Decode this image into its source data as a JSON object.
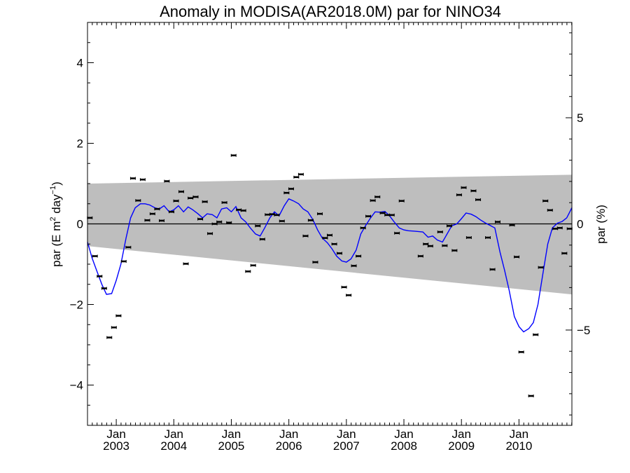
{
  "chart_data": {
    "type": "scatter",
    "title": "Anomaly in MODISA(AR2018.0M) par for NINO34",
    "ylabel": "par (E m² day⁻¹)",
    "ylabel_parts": {
      "base": "par (E m",
      "sup1": "2",
      "mid": " day",
      "sup2": "−1",
      "end": ")"
    },
    "y2label": "par (%)",
    "xlim": [
      2002.5,
      2010.92
    ],
    "ylim": [
      -5,
      5
    ],
    "y2lim": [
      -9.49,
      9.49
    ],
    "yticks": [
      -4,
      -2,
      0,
      2,
      4
    ],
    "yticklabels": [
      "−4",
      "−2",
      "0",
      "2",
      "4"
    ],
    "y2ticks": [
      -5,
      0,
      5
    ],
    "y2ticklabels": [
      "−5",
      "0",
      "5"
    ],
    "xticks": [
      {
        "x": 2003.0,
        "month": "Jan",
        "year": "2003"
      },
      {
        "x": 2004.0,
        "month": "Jan",
        "year": "2004"
      },
      {
        "x": 2005.0,
        "month": "Jan",
        "year": "2005"
      },
      {
        "x": 2006.0,
        "month": "Jan",
        "year": "2006"
      },
      {
        "x": 2007.0,
        "month": "Jan",
        "year": "2007"
      },
      {
        "x": 2008.0,
        "month": "Jan",
        "year": "2008"
      },
      {
        "x": 2009.0,
        "month": "Jan",
        "year": "2009"
      },
      {
        "x": 2010.0,
        "month": "Jan",
        "year": "2010"
      }
    ],
    "band": {
      "upper": [
        [
          2002.5,
          1.0
        ],
        [
          2010.92,
          1.22
        ]
      ],
      "lower": [
        [
          2002.5,
          -0.55
        ],
        [
          2010.92,
          -1.75
        ]
      ],
      "color": "#bebebe"
    },
    "zero_line": true,
    "points": [
      [
        2002.54,
        0.15
      ],
      [
        2002.63,
        -0.8
      ],
      [
        2002.71,
        -1.3
      ],
      [
        2002.79,
        -1.6
      ],
      [
        2002.88,
        -2.82
      ],
      [
        2002.96,
        -2.57
      ],
      [
        2003.04,
        -2.28
      ],
      [
        2003.13,
        -0.93
      ],
      [
        2003.21,
        -0.58
      ],
      [
        2003.29,
        1.13
      ],
      [
        2003.38,
        0.58
      ],
      [
        2003.46,
        1.1
      ],
      [
        2003.54,
        0.09
      ],
      [
        2003.63,
        0.25
      ],
      [
        2003.71,
        0.37
      ],
      [
        2003.79,
        0.08
      ],
      [
        2003.88,
        1.06
      ],
      [
        2003.96,
        0.3
      ],
      [
        2004.04,
        0.57
      ],
      [
        2004.13,
        0.8
      ],
      [
        2004.21,
        -0.99
      ],
      [
        2004.29,
        0.64
      ],
      [
        2004.38,
        0.67
      ],
      [
        2004.46,
        0.12
      ],
      [
        2004.54,
        0.55
      ],
      [
        2004.63,
        -0.24
      ],
      [
        2004.71,
        0.0
      ],
      [
        2004.79,
        0.05
      ],
      [
        2004.88,
        0.53
      ],
      [
        2004.96,
        0.03
      ],
      [
        2005.04,
        1.7
      ],
      [
        2005.13,
        0.35
      ],
      [
        2005.21,
        0.33
      ],
      [
        2005.29,
        -1.18
      ],
      [
        2005.38,
        -1.03
      ],
      [
        2005.46,
        -0.05
      ],
      [
        2005.54,
        -0.38
      ],
      [
        2005.63,
        0.23
      ],
      [
        2005.71,
        0.24
      ],
      [
        2005.79,
        0.22
      ],
      [
        2005.88,
        0.07
      ],
      [
        2005.96,
        0.77
      ],
      [
        2006.04,
        0.87
      ],
      [
        2006.13,
        1.16
      ],
      [
        2006.21,
        1.23
      ],
      [
        2006.29,
        -0.3
      ],
      [
        2006.38,
        0.09
      ],
      [
        2006.46,
        -0.95
      ],
      [
        2006.54,
        0.25
      ],
      [
        2006.63,
        -0.35
      ],
      [
        2006.71,
        -0.28
      ],
      [
        2006.79,
        -0.5
      ],
      [
        2006.88,
        -0.73
      ],
      [
        2006.96,
        -1.57
      ],
      [
        2007.04,
        -1.77
      ],
      [
        2007.13,
        -1.04
      ],
      [
        2007.21,
        -0.8
      ],
      [
        2007.29,
        -0.1
      ],
      [
        2007.38,
        0.19
      ],
      [
        2007.46,
        0.58
      ],
      [
        2007.54,
        0.67
      ],
      [
        2007.63,
        0.27
      ],
      [
        2007.71,
        0.22
      ],
      [
        2007.79,
        0.22
      ],
      [
        2007.88,
        -0.23
      ],
      [
        2007.96,
        0.57
      ],
      [
        2008.29,
        -0.8
      ],
      [
        2008.38,
        -0.5
      ],
      [
        2008.46,
        -0.55
      ],
      [
        2008.63,
        -0.2
      ],
      [
        2008.71,
        -0.54
      ],
      [
        2008.79,
        -0.05
      ],
      [
        2008.88,
        -0.66
      ],
      [
        2008.96,
        0.72
      ],
      [
        2009.04,
        0.9
      ],
      [
        2009.13,
        -0.34
      ],
      [
        2009.21,
        0.82
      ],
      [
        2009.29,
        0.6
      ],
      [
        2009.46,
        -0.34
      ],
      [
        2009.54,
        -1.13
      ],
      [
        2009.63,
        0.05
      ],
      [
        2009.88,
        -0.03
      ],
      [
        2009.96,
        -0.82
      ],
      [
        2010.04,
        -3.18
      ],
      [
        2010.21,
        -4.27
      ],
      [
        2010.29,
        -2.75
      ],
      [
        2010.38,
        -1.08
      ],
      [
        2010.46,
        0.57
      ],
      [
        2010.54,
        0.34
      ],
      [
        2010.63,
        -0.12
      ],
      [
        2010.71,
        -0.1
      ],
      [
        2010.79,
        -0.73
      ],
      [
        2010.88,
        -0.12
      ]
    ],
    "line": {
      "color": "#0000ff",
      "points": [
        [
          2002.5,
          -0.45
        ],
        [
          2002.58,
          -0.85
        ],
        [
          2002.67,
          -1.2
        ],
        [
          2002.75,
          -1.5
        ],
        [
          2002.83,
          -1.75
        ],
        [
          2002.92,
          -1.73
        ],
        [
          2003.0,
          -1.4
        ],
        [
          2003.08,
          -1.0
        ],
        [
          2003.17,
          -0.35
        ],
        [
          2003.25,
          0.15
        ],
        [
          2003.33,
          0.4
        ],
        [
          2003.42,
          0.5
        ],
        [
          2003.5,
          0.5
        ],
        [
          2003.58,
          0.47
        ],
        [
          2003.67,
          0.4
        ],
        [
          2003.75,
          0.37
        ],
        [
          2003.83,
          0.45
        ],
        [
          2003.92,
          0.3
        ],
        [
          2004.0,
          0.35
        ],
        [
          2004.08,
          0.45
        ],
        [
          2004.17,
          0.3
        ],
        [
          2004.25,
          0.42
        ],
        [
          2004.33,
          0.35
        ],
        [
          2004.42,
          0.25
        ],
        [
          2004.5,
          0.15
        ],
        [
          2004.58,
          0.25
        ],
        [
          2004.67,
          0.23
        ],
        [
          2004.75,
          0.15
        ],
        [
          2004.83,
          0.37
        ],
        [
          2004.92,
          0.4
        ],
        [
          2005.0,
          0.3
        ],
        [
          2005.08,
          0.43
        ],
        [
          2005.17,
          0.15
        ],
        [
          2005.25,
          0.05
        ],
        [
          2005.33,
          -0.1
        ],
        [
          2005.42,
          -0.25
        ],
        [
          2005.5,
          -0.3
        ],
        [
          2005.58,
          -0.1
        ],
        [
          2005.67,
          0.15
        ],
        [
          2005.75,
          0.3
        ],
        [
          2005.83,
          0.2
        ],
        [
          2005.92,
          0.45
        ],
        [
          2006.0,
          0.62
        ],
        [
          2006.08,
          0.57
        ],
        [
          2006.17,
          0.5
        ],
        [
          2006.25,
          0.37
        ],
        [
          2006.33,
          0.3
        ],
        [
          2006.42,
          0.1
        ],
        [
          2006.5,
          -0.15
        ],
        [
          2006.58,
          -0.35
        ],
        [
          2006.67,
          -0.47
        ],
        [
          2006.75,
          -0.62
        ],
        [
          2006.83,
          -0.8
        ],
        [
          2006.92,
          -0.92
        ],
        [
          2007.0,
          -0.95
        ],
        [
          2007.08,
          -0.87
        ],
        [
          2007.17,
          -0.65
        ],
        [
          2007.25,
          -0.25
        ],
        [
          2007.33,
          -0.05
        ],
        [
          2007.42,
          0.15
        ],
        [
          2007.5,
          0.3
        ],
        [
          2007.58,
          0.29
        ],
        [
          2007.67,
          0.31
        ],
        [
          2007.75,
          0.2
        ],
        [
          2007.83,
          0.05
        ],
        [
          2007.92,
          -0.1
        ],
        [
          2008.0,
          -0.15
        ],
        [
          2008.08,
          -0.17
        ],
        [
          2008.17,
          -0.18
        ],
        [
          2008.25,
          -0.19
        ],
        [
          2008.33,
          -0.2
        ],
        [
          2008.42,
          -0.33
        ],
        [
          2008.5,
          -0.3
        ],
        [
          2008.58,
          -0.4
        ],
        [
          2008.67,
          -0.45
        ],
        [
          2008.75,
          -0.25
        ],
        [
          2008.83,
          -0.05
        ],
        [
          2008.92,
          0.0
        ],
        [
          2009.0,
          0.13
        ],
        [
          2009.08,
          0.27
        ],
        [
          2009.17,
          0.24
        ],
        [
          2009.25,
          0.18
        ],
        [
          2009.33,
          0.1
        ],
        [
          2009.42,
          0.02
        ],
        [
          2009.5,
          -0.04
        ],
        [
          2009.58,
          -0.1
        ],
        [
          2009.67,
          -0.7
        ],
        [
          2009.75,
          -1.15
        ],
        [
          2009.83,
          -1.65
        ],
        [
          2009.92,
          -2.3
        ],
        [
          2010.0,
          -2.55
        ],
        [
          2010.08,
          -2.68
        ],
        [
          2010.17,
          -2.6
        ],
        [
          2010.25,
          -2.45
        ],
        [
          2010.33,
          -2.0
        ],
        [
          2010.42,
          -1.2
        ],
        [
          2010.5,
          -0.5
        ],
        [
          2010.58,
          -0.1
        ],
        [
          2010.67,
          0.02
        ],
        [
          2010.75,
          0.06
        ],
        [
          2010.83,
          0.15
        ],
        [
          2010.92,
          0.4
        ]
      ]
    }
  }
}
